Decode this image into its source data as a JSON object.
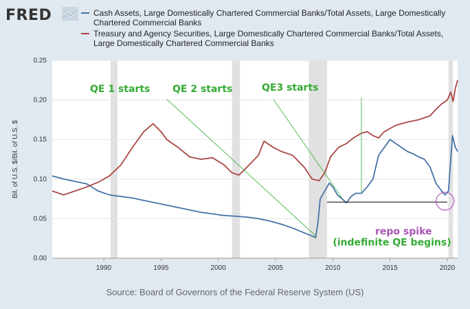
{
  "brand": {
    "name": "FRED"
  },
  "colors": {
    "cash": "#4572a7",
    "treasury": "#aa4643",
    "recession": "#e1e1e1",
    "annotation_green": "#33aa33",
    "annotation_purple": "#a855b5"
  },
  "source": "Source: Board of Governors of the Federal Reserve System (US)",
  "chart_data": {
    "type": "line",
    "ylabel": "Bil. of U.S. $/Bil. of U.S. $",
    "xlim": [
      1985.5,
      2020.9
    ],
    "ylim": [
      0,
      0.25
    ],
    "xticks": [
      1990,
      1995,
      2000,
      2005,
      2010,
      2015,
      2020
    ],
    "yticks": [
      "0.00",
      "0.05",
      "0.10",
      "0.15",
      "0.20",
      "0.25"
    ],
    "grid": true,
    "legend_position": "top",
    "recessions": [
      [
        1990.6,
        1991.2
      ],
      [
        2001.2,
        2001.9
      ],
      [
        2007.9,
        2009.5
      ],
      [
        2020.1,
        2020.5
      ]
    ],
    "series": [
      {
        "name": "Cash Assets, Large Domestically Chartered Commercial Banks/Total Assets, Large Domestically Chartered Commercial Banks",
        "color": "#4572a7",
        "points": [
          [
            1985.5,
            0.104
          ],
          [
            1986.5,
            0.1
          ],
          [
            1987.5,
            0.097
          ],
          [
            1988.5,
            0.094
          ],
          [
            1989.5,
            0.085
          ],
          [
            1990.5,
            0.08
          ],
          [
            1991.5,
            0.078
          ],
          [
            1992.5,
            0.076
          ],
          [
            1993.5,
            0.073
          ],
          [
            1994.5,
            0.07
          ],
          [
            1995.5,
            0.067
          ],
          [
            1996.5,
            0.064
          ],
          [
            1997.5,
            0.061
          ],
          [
            1998.5,
            0.058
          ],
          [
            1999.5,
            0.056
          ],
          [
            2000.5,
            0.054
          ],
          [
            2001.5,
            0.053
          ],
          [
            2002.5,
            0.052
          ],
          [
            2003.5,
            0.05
          ],
          [
            2004.5,
            0.047
          ],
          [
            2005.5,
            0.043
          ],
          [
            2006.5,
            0.038
          ],
          [
            2007.5,
            0.032
          ],
          [
            2008.2,
            0.028
          ],
          [
            2008.5,
            0.026
          ],
          [
            2008.7,
            0.045
          ],
          [
            2008.9,
            0.075
          ],
          [
            2009.3,
            0.085
          ],
          [
            2009.7,
            0.095
          ],
          [
            2010.0,
            0.09
          ],
          [
            2010.4,
            0.08
          ],
          [
            2010.8,
            0.075
          ],
          [
            2011.2,
            0.07
          ],
          [
            2011.6,
            0.078
          ],
          [
            2012.0,
            0.082
          ],
          [
            2012.5,
            0.082
          ],
          [
            2013.0,
            0.09
          ],
          [
            2013.5,
            0.1
          ],
          [
            2014.0,
            0.13
          ],
          [
            2014.5,
            0.14
          ],
          [
            2015.0,
            0.15
          ],
          [
            2015.5,
            0.145
          ],
          [
            2016.0,
            0.14
          ],
          [
            2016.5,
            0.135
          ],
          [
            2017.0,
            0.132
          ],
          [
            2017.5,
            0.128
          ],
          [
            2018.0,
            0.125
          ],
          [
            2018.5,
            0.115
          ],
          [
            2019.0,
            0.095
          ],
          [
            2019.5,
            0.085
          ],
          [
            2019.8,
            0.08
          ],
          [
            2020.1,
            0.085
          ],
          [
            2020.3,
            0.125
          ],
          [
            2020.45,
            0.155
          ],
          [
            2020.7,
            0.14
          ],
          [
            2020.9,
            0.135
          ]
        ]
      },
      {
        "name": "Treasury and Agency Securities, Large Domestically Chartered Commercial Banks/Total Assets, Large Domestically Chartered Commercial Banks",
        "color": "#aa4643",
        "points": [
          [
            1985.5,
            0.085
          ],
          [
            1986.5,
            0.08
          ],
          [
            1987.5,
            0.085
          ],
          [
            1988.5,
            0.09
          ],
          [
            1989.5,
            0.096
          ],
          [
            1990.5,
            0.104
          ],
          [
            1991.5,
            0.118
          ],
          [
            1992.5,
            0.14
          ],
          [
            1993.5,
            0.16
          ],
          [
            1994.3,
            0.17
          ],
          [
            1995.0,
            0.16
          ],
          [
            1995.5,
            0.15
          ],
          [
            1996.5,
            0.14
          ],
          [
            1997.5,
            0.128
          ],
          [
            1998.5,
            0.125
          ],
          [
            1999.5,
            0.127
          ],
          [
            2000.5,
            0.118
          ],
          [
            2001.2,
            0.108
          ],
          [
            2001.8,
            0.105
          ],
          [
            2002.5,
            0.115
          ],
          [
            2003.5,
            0.13
          ],
          [
            2004.0,
            0.148
          ],
          [
            2004.8,
            0.14
          ],
          [
            2005.5,
            0.135
          ],
          [
            2006.5,
            0.13
          ],
          [
            2007.5,
            0.115
          ],
          [
            2008.2,
            0.1
          ],
          [
            2008.8,
            0.098
          ],
          [
            2009.3,
            0.108
          ],
          [
            2009.8,
            0.128
          ],
          [
            2010.5,
            0.14
          ],
          [
            2011.2,
            0.145
          ],
          [
            2011.8,
            0.152
          ],
          [
            2012.5,
            0.158
          ],
          [
            2013.0,
            0.16
          ],
          [
            2013.5,
            0.155
          ],
          [
            2014.0,
            0.152
          ],
          [
            2014.5,
            0.16
          ],
          [
            2015.5,
            0.168
          ],
          [
            2016.5,
            0.172
          ],
          [
            2017.5,
            0.175
          ],
          [
            2018.5,
            0.18
          ],
          [
            2019.0,
            0.188
          ],
          [
            2019.5,
            0.195
          ],
          [
            2020.0,
            0.2
          ],
          [
            2020.3,
            0.21
          ],
          [
            2020.5,
            0.198
          ],
          [
            2020.7,
            0.215
          ],
          [
            2020.9,
            0.225
          ]
        ]
      }
    ],
    "annotations": [
      {
        "text": "QE 1 starts",
        "color": "#33aa33",
        "text_x": 1988.8,
        "text_y": 0.21,
        "line": [
          [
            1995.5,
            0.201
          ],
          [
            2008.6,
            0.027
          ]
        ]
      },
      {
        "text": "QE 2 starts",
        "color": "#33aa33",
        "text_x": 1996.0,
        "text_y": 0.21,
        "line": [
          [
            2004.8,
            0.201
          ],
          [
            2010.8,
            0.076
          ]
        ]
      },
      {
        "text": "QE3 starts",
        "color": "#33aa33",
        "text_x": 2003.8,
        "text_y": 0.212,
        "line": [
          [
            2012.5,
            0.203
          ],
          [
            2012.5,
            0.082
          ]
        ]
      },
      {
        "text": "repo spike",
        "color": "#a855b5",
        "text_x": 2013.7,
        "text_y": 0.03,
        "line": []
      },
      {
        "text": "(indefinite QE begins)",
        "color": "#33aa33",
        "text_x": 2010.0,
        "text_y": 0.016,
        "line": []
      }
    ],
    "reference_line": {
      "y": 0.071,
      "x": [
        2009.5,
        2020.0
      ]
    },
    "highlight_circle": {
      "x": 2019.8,
      "y": 0.072
    }
  }
}
